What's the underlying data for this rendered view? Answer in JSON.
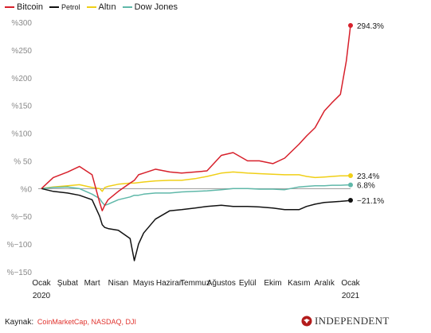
{
  "legend": [
    {
      "label": "Bitcoin",
      "color": "#d7202b"
    },
    {
      "label": "Petrol",
      "color": "#111111"
    },
    {
      "label": "Altın",
      "color": "#f0cf16"
    },
    {
      "label": "Dow Jones",
      "color": "#5fb8a9"
    }
  ],
  "source": {
    "label": "Kaynak:",
    "text": "CoinMarketCap, NASDAQ, DJI"
  },
  "brand": {
    "name": "INDEPENDENT",
    "icon": "eagle-logo-icon",
    "color": "#b31b1b"
  },
  "chart_data": {
    "type": "line",
    "y_tick_labels": [
      "%300",
      "%250",
      "%200",
      "%150",
      "%100",
      "% 50",
      "%0",
      "%−50",
      "%−100",
      "%−150"
    ],
    "y_tick_values": [
      300,
      250,
      200,
      150,
      100,
      50,
      0,
      -50,
      -100,
      -150
    ],
    "x_tick_labels": [
      "Ocak",
      "Şubat",
      "Mart",
      "Nisan",
      "Mayıs",
      "Haziran",
      "Temmuz",
      "Ağustos",
      "Eylül",
      "Ekim",
      "Kasım",
      "Aralık",
      "Ocak"
    ],
    "year_labels": {
      "start": "2020",
      "end": "2021"
    },
    "ylim": [
      -150,
      300
    ],
    "grid": false,
    "legend_position": "top-left",
    "x": [
      "2020-01",
      "2020-01-15",
      "2020-02",
      "2020-02-15",
      "2020-03",
      "2020-03-10",
      "2020-03-13",
      "2020-03-16",
      "2020-03-20",
      "2020-04",
      "2020-04-15",
      "2020-04-20",
      "2020-04-25",
      "2020-05",
      "2020-05-15",
      "2020-06",
      "2020-06-15",
      "2020-07",
      "2020-07-15",
      "2020-08",
      "2020-08-15",
      "2020-09",
      "2020-09-15",
      "2020-10",
      "2020-10-15",
      "2020-11",
      "2020-11-10",
      "2020-11-20",
      "2020-12",
      "2020-12-10",
      "2020-12-20",
      "2020-12-27",
      "2021-01"
    ],
    "series": [
      {
        "name": "Bitcoin",
        "color": "#d7202b",
        "end_label": "294.3%",
        "values": [
          0,
          20,
          30,
          40,
          25,
          -25,
          -40,
          -30,
          -20,
          -5,
          10,
          15,
          25,
          28,
          35,
          30,
          28,
          30,
          32,
          60,
          65,
          50,
          50,
          45,
          55,
          80,
          95,
          110,
          140,
          155,
          170,
          230,
          294.3
        ]
      },
      {
        "name": "Petrol",
        "color": "#111111",
        "end_label": "−21.1%",
        "values": [
          0,
          -5,
          -8,
          -12,
          -20,
          -50,
          -65,
          -70,
          -72,
          -75,
          -90,
          -130,
          -100,
          -80,
          -55,
          -40,
          -38,
          -35,
          -32,
          -30,
          -32,
          -32,
          -33,
          -35,
          -38,
          -38,
          -32,
          -28,
          -25,
          -24,
          -23,
          -22,
          -21.1
        ]
      },
      {
        "name": "Altın",
        "color": "#f0cf16",
        "end_label": "23.4%",
        "values": [
          0,
          3,
          5,
          7,
          2,
          0,
          -5,
          2,
          4,
          8,
          10,
          10,
          11,
          12,
          14,
          15,
          15,
          18,
          22,
          28,
          30,
          28,
          27,
          26,
          25,
          25,
          22,
          20,
          21,
          22,
          23,
          23,
          23.4
        ]
      },
      {
        "name": "Dow Jones",
        "color": "#5fb8a9",
        "end_label": "6.8%",
        "values": [
          0,
          2,
          3,
          0,
          -10,
          -18,
          -25,
          -30,
          -28,
          -20,
          -15,
          -12,
          -12,
          -10,
          -8,
          -8,
          -6,
          -5,
          -4,
          -2,
          0,
          0,
          -1,
          -1,
          -2,
          3,
          4,
          5,
          5,
          6,
          6,
          6.5,
          6.8
        ]
      }
    ]
  }
}
